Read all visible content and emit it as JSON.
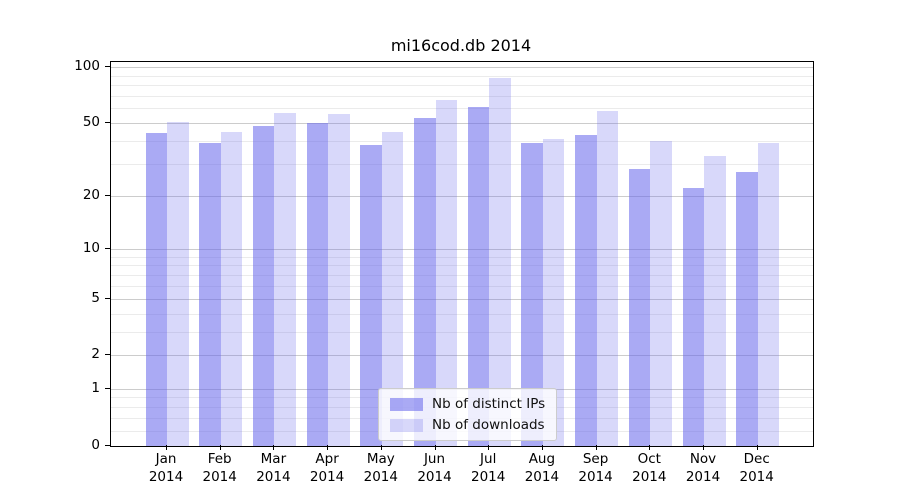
{
  "title": "mi16cod.db 2014",
  "legend": {
    "items": [
      {
        "label": "Nb of distinct IPs",
        "color": "rgba(100,100,235,0.55)"
      },
      {
        "label": "Nb of downloads",
        "color": "rgba(100,100,235,0.25)"
      }
    ],
    "position": "lower center"
  },
  "colors": {
    "bar_distinct_ips": "rgba(100,100,235,0.55)",
    "bar_distinct_ips_on_white": "#a9a9f4",
    "bar_downloads": "rgba(100,100,235,0.25)",
    "bar_downloads_on_white": "#d9d9f8",
    "grid_major": "#cccccc",
    "grid_minor": "#ebebeb",
    "spine": "#000000",
    "background": "#ffffff",
    "text": "#000000"
  },
  "chart_data": {
    "type": "bar",
    "title": "mi16cod.db 2014",
    "y_scale": "log10(1+value)",
    "months": [
      "Jan",
      "Feb",
      "Mar",
      "Apr",
      "May",
      "Jun",
      "Jul",
      "Aug",
      "Sep",
      "Oct",
      "Nov",
      "Dec"
    ],
    "year": "2014",
    "categories": [
      "Jan 2014",
      "Feb 2014",
      "Mar 2014",
      "Apr 2014",
      "May 2014",
      "Jun 2014",
      "Jul 2014",
      "Aug 2014",
      "Sep 2014",
      "Oct 2014",
      "Nov 2014",
      "Dec 2014"
    ],
    "series": [
      {
        "name": "Nb of distinct IPs",
        "values": [
          44,
          39,
          48,
          50,
          38,
          53,
          61,
          39,
          43,
          28,
          22,
          27
        ]
      },
      {
        "name": "Nb of downloads",
        "values": [
          51,
          45,
          57,
          56,
          45,
          67,
          87,
          41,
          58,
          40,
          33,
          39
        ]
      }
    ],
    "yticks": [
      0,
      1,
      2,
      5,
      10,
      20,
      50,
      100
    ],
    "ytick_labels": [
      "0",
      "1",
      "2",
      "5",
      "10",
      "20",
      "50",
      "100"
    ],
    "minor_yticks": [
      0.2,
      0.4,
      0.6,
      0.8,
      3,
      4,
      6,
      7,
      8,
      9,
      30,
      40,
      60,
      70,
      80,
      90
    ],
    "ylim": [
      0,
      106
    ],
    "xlabel": "",
    "ylabel": "",
    "grid": true,
    "legend_position": "lower center"
  }
}
